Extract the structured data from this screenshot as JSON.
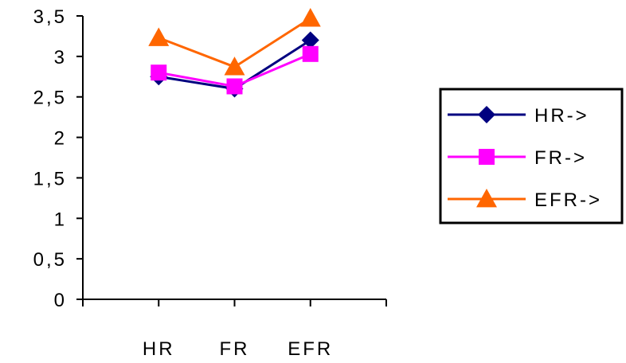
{
  "chart_data": {
    "type": "line",
    "categories": [
      "HR",
      "FR",
      "EFR"
    ],
    "y_tick_labels": [
      "0",
      "0,5",
      "1",
      "1,5",
      "2",
      "2,5",
      "3",
      "3,5"
    ],
    "ylim": [
      0,
      3.5
    ],
    "grid": false,
    "legend_position": "right",
    "series": [
      {
        "name": "HR->",
        "color": "#000080",
        "marker": "diamond",
        "values": [
          2.75,
          2.6,
          3.2
        ]
      },
      {
        "name": "FR->",
        "color": "#ff00ff",
        "marker": "square",
        "values": [
          2.8,
          2.63,
          3.03
        ]
      },
      {
        "name": "EFR->",
        "color": "#ff6600",
        "marker": "triangle",
        "values": [
          3.23,
          2.87,
          3.47
        ]
      }
    ]
  }
}
